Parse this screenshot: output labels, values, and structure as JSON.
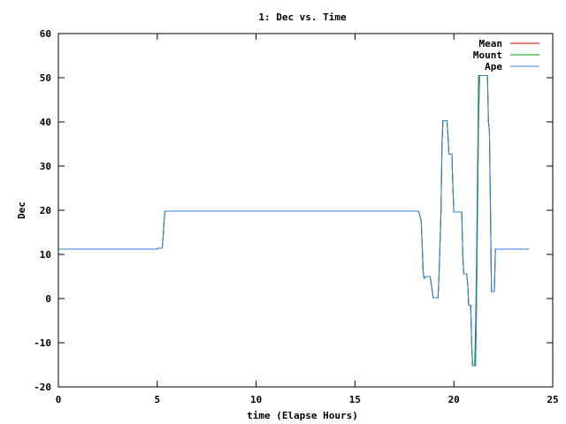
{
  "chart_data": {
    "type": "line",
    "title": "1: Dec vs. Time",
    "xlabel": "time (Elapse Hours)",
    "ylabel": "Dec",
    "xlim": [
      0,
      25
    ],
    "ylim": [
      -20,
      60
    ],
    "x_ticks": [
      0,
      5,
      10,
      15,
      20,
      25
    ],
    "y_ticks": [
      -20,
      -10,
      0,
      10,
      20,
      30,
      40,
      50,
      60
    ],
    "grid": false,
    "legend_position": "top-right",
    "series": [
      {
        "name": "Mean",
        "color": "#cc0000",
        "points": [
          [
            0,
            11.2
          ],
          [
            5.0,
            11.2
          ],
          [
            5.05,
            11.4
          ],
          [
            5.25,
            11.4
          ],
          [
            5.3,
            14
          ],
          [
            5.35,
            18
          ],
          [
            5.4,
            19.8
          ],
          [
            18.2,
            19.8
          ],
          [
            18.3,
            18.5
          ],
          [
            18.35,
            17.5
          ],
          [
            18.4,
            12
          ],
          [
            18.45,
            6
          ],
          [
            18.5,
            4.6
          ],
          [
            18.6,
            5
          ],
          [
            18.8,
            5
          ],
          [
            18.9,
            2
          ],
          [
            18.95,
            0.2
          ],
          [
            19.2,
            0.2
          ],
          [
            19.25,
            5
          ],
          [
            19.35,
            20
          ],
          [
            19.4,
            35
          ],
          [
            19.45,
            40.3
          ],
          [
            19.65,
            40.3
          ],
          [
            19.7,
            37
          ],
          [
            19.75,
            32.7
          ],
          [
            19.9,
            32.7
          ],
          [
            19.95,
            25
          ],
          [
            20.0,
            19.6
          ],
          [
            20.4,
            19.6
          ],
          [
            20.45,
            10
          ],
          [
            20.5,
            5.6
          ],
          [
            20.65,
            5.6
          ],
          [
            20.7,
            3
          ],
          [
            20.75,
            -1.5
          ],
          [
            20.85,
            -1.5
          ],
          [
            20.9,
            -10
          ],
          [
            20.95,
            -15.2
          ],
          [
            21.1,
            -15.2
          ],
          [
            21.15,
            0
          ],
          [
            21.2,
            20
          ],
          [
            21.25,
            40
          ],
          [
            21.3,
            50.5
          ],
          [
            21.7,
            50.5
          ],
          [
            21.75,
            40
          ],
          [
            21.8,
            38
          ],
          [
            21.85,
            20
          ],
          [
            21.9,
            1.6
          ],
          [
            22.05,
            1.6
          ],
          [
            22.1,
            11.2
          ],
          [
            23.8,
            11.2
          ]
        ]
      },
      {
        "name": "Mount",
        "color": "#00a000",
        "points": [
          [
            0,
            11.2
          ],
          [
            5.0,
            11.2
          ],
          [
            5.05,
            11.4
          ],
          [
            5.25,
            11.4
          ],
          [
            5.3,
            14
          ],
          [
            5.35,
            18
          ],
          [
            5.4,
            19.8
          ],
          [
            18.2,
            19.8
          ],
          [
            18.3,
            18.5
          ],
          [
            18.35,
            17.5
          ],
          [
            18.4,
            12
          ],
          [
            18.45,
            6
          ],
          [
            18.5,
            4.6
          ],
          [
            18.6,
            5
          ],
          [
            18.8,
            5
          ],
          [
            18.9,
            2
          ],
          [
            18.95,
            0.2
          ],
          [
            19.2,
            0.2
          ],
          [
            19.25,
            5
          ],
          [
            19.35,
            20
          ],
          [
            19.4,
            35
          ],
          [
            19.45,
            40.3
          ],
          [
            19.65,
            40.3
          ],
          [
            19.7,
            37
          ],
          [
            19.75,
            32.7
          ],
          [
            19.9,
            32.7
          ],
          [
            19.95,
            25
          ],
          [
            20.0,
            19.6
          ],
          [
            20.4,
            19.6
          ],
          [
            20.45,
            10
          ],
          [
            20.5,
            5.6
          ],
          [
            20.65,
            5.6
          ],
          [
            20.7,
            3
          ],
          [
            20.75,
            -1.5
          ],
          [
            20.85,
            -1.5
          ],
          [
            20.9,
            -10
          ],
          [
            20.95,
            -15.2
          ],
          [
            21.05,
            -15.2
          ],
          [
            21.1,
            -6
          ],
          [
            21.15,
            10
          ],
          [
            21.2,
            30
          ],
          [
            21.25,
            50.5
          ],
          [
            21.7,
            50.5
          ],
          [
            21.75,
            40
          ],
          [
            21.8,
            38
          ],
          [
            21.85,
            20
          ],
          [
            21.9,
            1.6
          ],
          [
            22.05,
            1.6
          ],
          [
            22.1,
            11.2
          ],
          [
            23.8,
            11.2
          ]
        ]
      },
      {
        "name": "Ape",
        "color": "#3080e0",
        "points": [
          [
            0,
            11.2
          ],
          [
            5.0,
            11.2
          ],
          [
            5.05,
            11.4
          ],
          [
            5.25,
            11.4
          ],
          [
            5.3,
            14
          ],
          [
            5.35,
            18
          ],
          [
            5.4,
            19.8
          ],
          [
            18.2,
            19.8
          ],
          [
            18.3,
            18.5
          ],
          [
            18.35,
            17.5
          ],
          [
            18.4,
            12
          ],
          [
            18.45,
            6
          ],
          [
            18.5,
            4.6
          ],
          [
            18.6,
            5
          ],
          [
            18.8,
            5
          ],
          [
            18.9,
            2
          ],
          [
            18.95,
            0.2
          ],
          [
            19.2,
            0.2
          ],
          [
            19.25,
            5
          ],
          [
            19.35,
            20
          ],
          [
            19.4,
            35
          ],
          [
            19.45,
            40.3
          ],
          [
            19.65,
            40.3
          ],
          [
            19.7,
            37
          ],
          [
            19.75,
            32.7
          ],
          [
            19.9,
            32.7
          ],
          [
            19.95,
            25
          ],
          [
            20.0,
            19.6
          ],
          [
            20.4,
            19.6
          ],
          [
            20.45,
            10
          ],
          [
            20.5,
            5.6
          ],
          [
            20.65,
            5.6
          ],
          [
            20.7,
            3
          ],
          [
            20.75,
            -1.5
          ],
          [
            20.85,
            -1.5
          ],
          [
            20.9,
            -10
          ],
          [
            20.95,
            -15.2
          ],
          [
            21.1,
            -15.2
          ],
          [
            21.15,
            0
          ],
          [
            21.2,
            20
          ],
          [
            21.25,
            40
          ],
          [
            21.3,
            50.5
          ],
          [
            21.7,
            50.5
          ],
          [
            21.75,
            40
          ],
          [
            21.8,
            38
          ],
          [
            21.85,
            20
          ],
          [
            21.9,
            1.6
          ],
          [
            22.05,
            1.6
          ],
          [
            22.1,
            11.2
          ],
          [
            23.8,
            11.2
          ]
        ]
      }
    ]
  }
}
